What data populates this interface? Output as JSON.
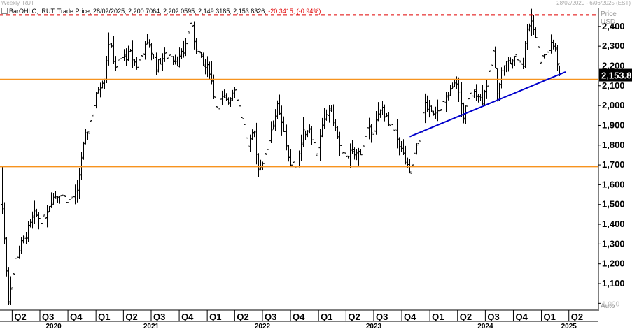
{
  "header": {
    "title": "Weekly .RUT",
    "date_range": "28/02/2020 - 6/06/2025 (EST)"
  },
  "legend": {
    "prefix": "BarOHLC, .RUT, Trade Price, 28/02/2025, 2,200.7064, 2,202.0595, 2,149.3185, 2,153.8326,",
    "change": "-20.3415, (-0.94%)"
  },
  "colors": {
    "bars": "#000000",
    "resistance_dashed": "#e00000",
    "horizontal_levels": "#f7931e",
    "trendline": "#0000cc",
    "last_price_box": "#000000"
  },
  "chart_data": {
    "type": "bar",
    "subtype": "ohlc",
    "title": "Weekly .RUT",
    "ylabel": "Price",
    "yunit": "USD",
    "scale": "Auto",
    "ylim": [
      980,
      2470
    ],
    "y_ticks": [
      "2,400",
      "2,300",
      "2,200",
      "2,100",
      "2,000",
      "1,900",
      "1,800",
      "1,700",
      "1,600",
      "1,500",
      "1,400",
      "1,300",
      "1,200",
      "1,100",
      "1,000"
    ],
    "last_price_label": "2,153.8",
    "last_price": 2153.83,
    "x_quarters": [
      {
        "q": "Q2",
        "date": "2020-04-01"
      },
      {
        "q": "Q3",
        "date": "2020-07-01"
      },
      {
        "q": "Q4",
        "date": "2020-10-01"
      },
      {
        "q": "Q1",
        "date": "2021-01-01"
      },
      {
        "q": "Q2",
        "date": "2021-04-01"
      },
      {
        "q": "Q3",
        "date": "2021-07-01"
      },
      {
        "q": "Q4",
        "date": "2021-10-01"
      },
      {
        "q": "Q1",
        "date": "2022-01-01"
      },
      {
        "q": "Q2",
        "date": "2022-04-01"
      },
      {
        "q": "Q3",
        "date": "2022-07-01"
      },
      {
        "q": "Q4",
        "date": "2022-10-01"
      },
      {
        "q": "Q1",
        "date": "2023-01-01"
      },
      {
        "q": "Q2",
        "date": "2023-04-01"
      },
      {
        "q": "Q3",
        "date": "2023-07-01"
      },
      {
        "q": "Q4",
        "date": "2023-10-01"
      },
      {
        "q": "Q1",
        "date": "2024-01-01"
      },
      {
        "q": "Q2",
        "date": "2024-04-01"
      },
      {
        "q": "Q3",
        "date": "2024-07-01"
      },
      {
        "q": "Q4",
        "date": "2024-10-01"
      },
      {
        "q": "Q1",
        "date": "2025-01-01"
      },
      {
        "q": "Q2",
        "date": "2025-04-01"
      }
    ],
    "x_years": [
      {
        "year": "2020",
        "date": "2020-08-15"
      },
      {
        "year": "2021",
        "date": "2021-07-01"
      },
      {
        "year": "2022",
        "date": "2022-07-01"
      },
      {
        "year": "2023",
        "date": "2023-07-01"
      },
      {
        "year": "2024",
        "date": "2024-07-01"
      },
      {
        "year": "2025",
        "date": "2025-04-01"
      }
    ],
    "horizontal_lines": [
      {
        "value": 2458,
        "style": "dashed",
        "color": "#e00000"
      },
      {
        "value": 2132,
        "style": "solid",
        "color": "#f7931e"
      },
      {
        "value": 1692,
        "style": "solid",
        "color": "#f7931e"
      }
    ],
    "trendline": {
      "start": {
        "date": "2023-10-27",
        "value": 1843
      },
      "end": {
        "date": "2025-03-21",
        "value": 2170
      }
    },
    "keypoints": [
      [
        "2020-02-28",
        1480
      ],
      [
        "2020-03-20",
        1020
      ],
      [
        "2020-04-10",
        1220
      ],
      [
        "2020-05-15",
        1350
      ],
      [
        "2020-06-12",
        1450
      ],
      [
        "2020-07-10",
        1420
      ],
      [
        "2020-08-07",
        1530
      ],
      [
        "2020-09-04",
        1560
      ],
      [
        "2020-10-02",
        1520
      ],
      [
        "2020-10-30",
        1560
      ],
      [
        "2020-11-13",
        1740
      ],
      [
        "2020-11-27",
        1840
      ],
      [
        "2020-12-18",
        1960
      ],
      [
        "2021-01-08",
        2090
      ],
      [
        "2021-01-29",
        2150
      ],
      [
        "2021-02-12",
        2320
      ],
      [
        "2021-03-05",
        2200
      ],
      [
        "2021-03-26",
        2240
      ],
      [
        "2021-04-23",
        2260
      ],
      [
        "2021-05-14",
        2200
      ],
      [
        "2021-06-04",
        2280
      ],
      [
        "2021-06-25",
        2310
      ],
      [
        "2021-07-16",
        2200
      ],
      [
        "2021-08-06",
        2240
      ],
      [
        "2021-09-03",
        2260
      ],
      [
        "2021-09-24",
        2220
      ],
      [
        "2021-10-15",
        2270
      ],
      [
        "2021-11-05",
        2420
      ],
      [
        "2021-11-26",
        2300
      ],
      [
        "2021-12-17",
        2200
      ],
      [
        "2022-01-07",
        2180
      ],
      [
        "2022-01-28",
        2000
      ],
      [
        "2022-02-18",
        2030
      ],
      [
        "2022-03-11",
        2020
      ],
      [
        "2022-03-31",
        2100
      ],
      [
        "2022-04-22",
        1950
      ],
      [
        "2022-05-13",
        1790
      ],
      [
        "2022-06-03",
        1860
      ],
      [
        "2022-06-17",
        1680
      ],
      [
        "2022-07-08",
        1740
      ],
      [
        "2022-07-29",
        1880
      ],
      [
        "2022-08-19",
        1990
      ],
      [
        "2022-09-09",
        1860
      ],
      [
        "2022-09-30",
        1690
      ],
      [
        "2022-10-21",
        1710
      ],
      [
        "2022-11-11",
        1860
      ],
      [
        "2022-12-02",
        1890
      ],
      [
        "2022-12-23",
        1760
      ],
      [
        "2023-01-13",
        1880
      ],
      [
        "2023-02-03",
        1990
      ],
      [
        "2023-02-24",
        1890
      ],
      [
        "2023-03-17",
        1740
      ],
      [
        "2023-04-07",
        1760
      ],
      [
        "2023-04-28",
        1750
      ],
      [
        "2023-05-19",
        1770
      ],
      [
        "2023-06-09",
        1870
      ],
      [
        "2023-06-30",
        1890
      ],
      [
        "2023-07-28",
        1990
      ],
      [
        "2023-08-18",
        1900
      ],
      [
        "2023-09-08",
        1860
      ],
      [
        "2023-09-29",
        1780
      ],
      [
        "2023-10-27",
        1650
      ],
      [
        "2023-11-10",
        1750
      ],
      [
        "2023-11-24",
        1820
      ],
      [
        "2023-12-15",
        2010
      ],
      [
        "2024-01-05",
        1960
      ],
      [
        "2024-01-26",
        1990
      ],
      [
        "2024-02-16",
        2010
      ],
      [
        "2024-03-08",
        2070
      ],
      [
        "2024-03-29",
        2120
      ],
      [
        "2024-04-19",
        1950
      ],
      [
        "2024-05-10",
        2050
      ],
      [
        "2024-05-31",
        2070
      ],
      [
        "2024-06-21",
        2030
      ],
      [
        "2024-07-12",
        2150
      ],
      [
        "2024-07-26",
        2270
      ],
      [
        "2024-08-09",
        2080
      ],
      [
        "2024-08-30",
        2210
      ],
      [
        "2024-09-20",
        2220
      ],
      [
        "2024-10-11",
        2240
      ],
      [
        "2024-11-01",
        2210
      ],
      [
        "2024-11-15",
        2400
      ],
      [
        "2024-11-29",
        2430
      ],
      [
        "2024-12-13",
        2350
      ],
      [
        "2024-12-27",
        2230
      ],
      [
        "2025-01-17",
        2270
      ],
      [
        "2025-01-31",
        2300
      ],
      [
        "2025-02-14",
        2290
      ],
      [
        "2025-02-28",
        2153.83
      ]
    ]
  }
}
